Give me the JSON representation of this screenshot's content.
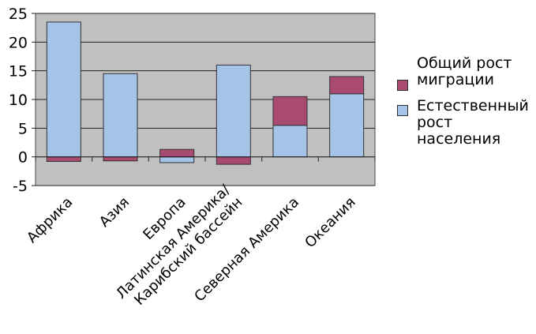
{
  "chart_data": {
    "type": "bar",
    "stacked": true,
    "categories": [
      "Африка",
      "Азия",
      "Европа",
      "Латинская Америка/ Карибский бассейн",
      "Северная Америка",
      "Океания"
    ],
    "category_lines": [
      [
        "Африка"
      ],
      [
        "Азия"
      ],
      [
        "Европа"
      ],
      [
        "Латинская Америка/",
        "Карибский бассейн"
      ],
      [
        "Северная Америка"
      ],
      [
        "Океания"
      ]
    ],
    "series": [
      {
        "name": "Естественный рост населения",
        "color": "#a6c3e8",
        "values": [
          23.5,
          14.5,
          -1.0,
          16.0,
          5.5,
          11.0
        ]
      },
      {
        "name": "Общий рост миграции",
        "color": "#a94a71",
        "values": [
          -0.8,
          -0.7,
          1.3,
          -1.3,
          5.0,
          3.0
        ]
      }
    ],
    "ylim": [
      -5,
      25
    ],
    "yticks": [
      -5,
      0,
      5,
      10,
      15,
      20,
      25
    ],
    "grid": true,
    "plot_background": "#c0c0c0",
    "legend_position": "right"
  },
  "legend": {
    "migration": "Общий рост миграции",
    "natural": "Естественный рост населения"
  }
}
